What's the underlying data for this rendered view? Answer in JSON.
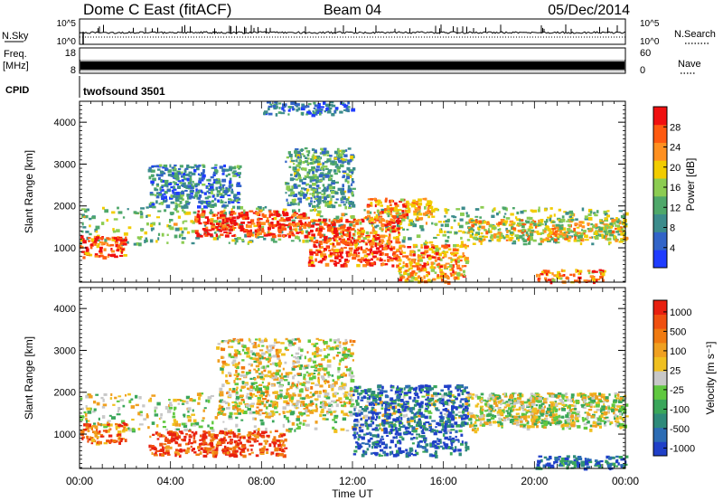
{
  "header": {
    "station": "Dome C East (fitACF)",
    "beam": "Beam 04",
    "date": "05/Dec/2014"
  },
  "params": {
    "nsky_label": "N.Sky",
    "nsky_ticks": [
      "10^5",
      "10^0"
    ],
    "nsearch_label": "N.Search",
    "nsearch_ticks": [
      "10^5",
      "10^0"
    ],
    "freq_label_1": "Freq.",
    "freq_label_2": "[MHz]",
    "freq_ticks": [
      "18",
      "8"
    ],
    "nave_label": "Nave",
    "nave_ticks": [
      "60",
      "0"
    ],
    "cpid_label": "CPID",
    "cpid_value": "twofsound 3501",
    "legend_line_style": "dotted"
  },
  "chart_data": [
    {
      "type": "heatmap",
      "quantity": "power",
      "ylabel": "Slant Range [km]",
      "ylim": [
        180,
        4500
      ],
      "yticks": [
        "1000",
        "2000",
        "3000",
        "4000"
      ],
      "xlim_hours": [
        0,
        24
      ],
      "colorbar": {
        "label": "Power [dB]",
        "ticks": [
          "4",
          "8",
          "12",
          "16",
          "20",
          "24",
          "28"
        ],
        "range": [
          0,
          32
        ],
        "colors": [
          "#1f3cff",
          "#3264c8",
          "#3c8c8c",
          "#4fa86a",
          "#8ccc52",
          "#f2cc00",
          "#ff9020",
          "#ff5a10",
          "#f01010"
        ]
      },
      "echo_regions": [
        {
          "hours": [
            0,
            24
          ],
          "range_km": [
            1100,
            2000
          ],
          "level": 0.45
        },
        {
          "hours": [
            0,
            2
          ],
          "range_km": [
            800,
            1300
          ],
          "level": 0.85
        },
        {
          "hours": [
            5,
            10
          ],
          "range_km": [
            1300,
            1900
          ],
          "level": 0.9
        },
        {
          "hours": [
            10,
            14
          ],
          "range_km": [
            600,
            1700
          ],
          "level": 0.85
        },
        {
          "hours": [
            12.5,
            15.5
          ],
          "range_km": [
            1700,
            2200
          ],
          "level": 0.75
        },
        {
          "hours": [
            14,
            17
          ],
          "range_km": [
            200,
            1100
          ],
          "level": 0.7
        },
        {
          "hours": [
            17,
            24
          ],
          "range_km": [
            1200,
            1700
          ],
          "level": 0.6
        },
        {
          "hours": [
            20,
            23
          ],
          "range_km": [
            200,
            500
          ],
          "level": 0.75
        },
        {
          "hours": [
            9,
            12
          ],
          "range_km": [
            2000,
            3400
          ],
          "level": 0.35
        },
        {
          "hours": [
            3,
            7
          ],
          "range_km": [
            2000,
            3000
          ],
          "level": 0.25
        },
        {
          "hours": [
            8,
            12
          ],
          "range_km": [
            4200,
            4500
          ],
          "level": 0.2
        }
      ]
    },
    {
      "type": "heatmap",
      "quantity": "velocity",
      "ylabel": "Slant Range [km]",
      "ylim": [
        180,
        4500
      ],
      "yticks": [
        "1000",
        "2000",
        "3000",
        "4000"
      ],
      "xlabel": "Time UT",
      "xticks": [
        "00:00",
        "04:00",
        "08:00",
        "12:00",
        "16:00",
        "20:00",
        "00:00"
      ],
      "xlim_hours": [
        0,
        24
      ],
      "colorbar": {
        "label": "Velocity [m s⁻¹]",
        "ticks": [
          "1000",
          "500",
          "100",
          "25",
          "-25",
          "-100",
          "-500",
          "-1000"
        ],
        "colors": [
          "#2040c8",
          "#2c6cb4",
          "#2e8a7a",
          "#3aa65a",
          "#60c840",
          "#c8c8c8",
          "#f0c020",
          "#f0a020",
          "#f07a10",
          "#f05010",
          "#e82010"
        ]
      },
      "echo_regions": [
        {
          "hours": [
            0,
            24
          ],
          "range_km": [
            1100,
            2000
          ],
          "level": 0.5
        },
        {
          "hours": [
            0,
            2
          ],
          "range_km": [
            800,
            1300
          ],
          "level": 0.8
        },
        {
          "hours": [
            3,
            9
          ],
          "range_km": [
            500,
            1100
          ],
          "level": 0.9
        },
        {
          "hours": [
            6,
            12
          ],
          "range_km": [
            1500,
            3300
          ],
          "level": 0.55
        },
        {
          "hours": [
            12,
            17
          ],
          "range_km": [
            500,
            2200
          ],
          "level": 0.1
        },
        {
          "hours": [
            17,
            24
          ],
          "range_km": [
            1200,
            2000
          ],
          "level": 0.5
        },
        {
          "hours": [
            20,
            24
          ],
          "range_km": [
            200,
            500
          ],
          "level": 0.15
        }
      ]
    }
  ]
}
